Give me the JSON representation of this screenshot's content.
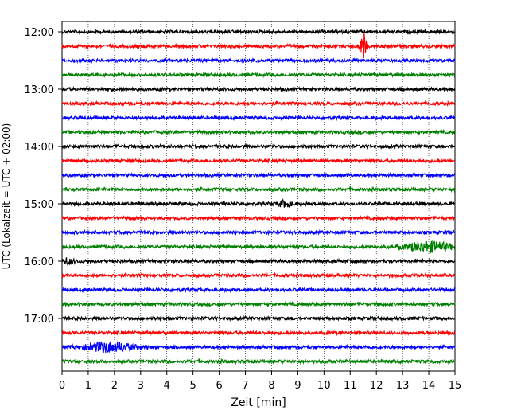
{
  "chart_data": {
    "type": "line",
    "title": "",
    "xlabel": "Zeit  [min]",
    "ylabel": "UTC (Lokalzeit = UTC + 02:00)",
    "xlim": [
      0,
      15
    ],
    "x_ticks": [
      "0",
      "1",
      "2",
      "3",
      "4",
      "5",
      "6",
      "7",
      "8",
      "9",
      "10",
      "11",
      "12",
      "13",
      "14",
      "15"
    ],
    "y_tick_labels": [
      "12:00",
      "13:00",
      "14:00",
      "15:00",
      "16:00",
      "17:00"
    ],
    "grid": "vertical dotted",
    "color_cycle": [
      "#000000",
      "#ff0000",
      "#0000ff",
      "#008000"
    ],
    "trace_rows": [
      "12:00",
      "12:15",
      "12:30",
      "12:45",
      "13:00",
      "13:15",
      "13:30",
      "13:45",
      "14:00",
      "14:15",
      "14:30",
      "14:45",
      "15:00",
      "15:15",
      "15:30",
      "15:45",
      "16:00",
      "16:15",
      "16:30",
      "16:45",
      "17:00",
      "17:15",
      "17:30",
      "17:45"
    ],
    "events": [
      {
        "row": "12:15",
        "minute": 11.5,
        "amplitude": "large"
      },
      {
        "row": "15:45",
        "minute": 14.0,
        "amplitude": "elevated"
      },
      {
        "row": "17:30",
        "minute": 1.8,
        "amplitude": "elevated"
      },
      {
        "row": "15:00",
        "minute": 8.5,
        "amplitude": "small"
      },
      {
        "row": "16:00",
        "minute": 0.2,
        "amplitude": "small"
      }
    ]
  }
}
